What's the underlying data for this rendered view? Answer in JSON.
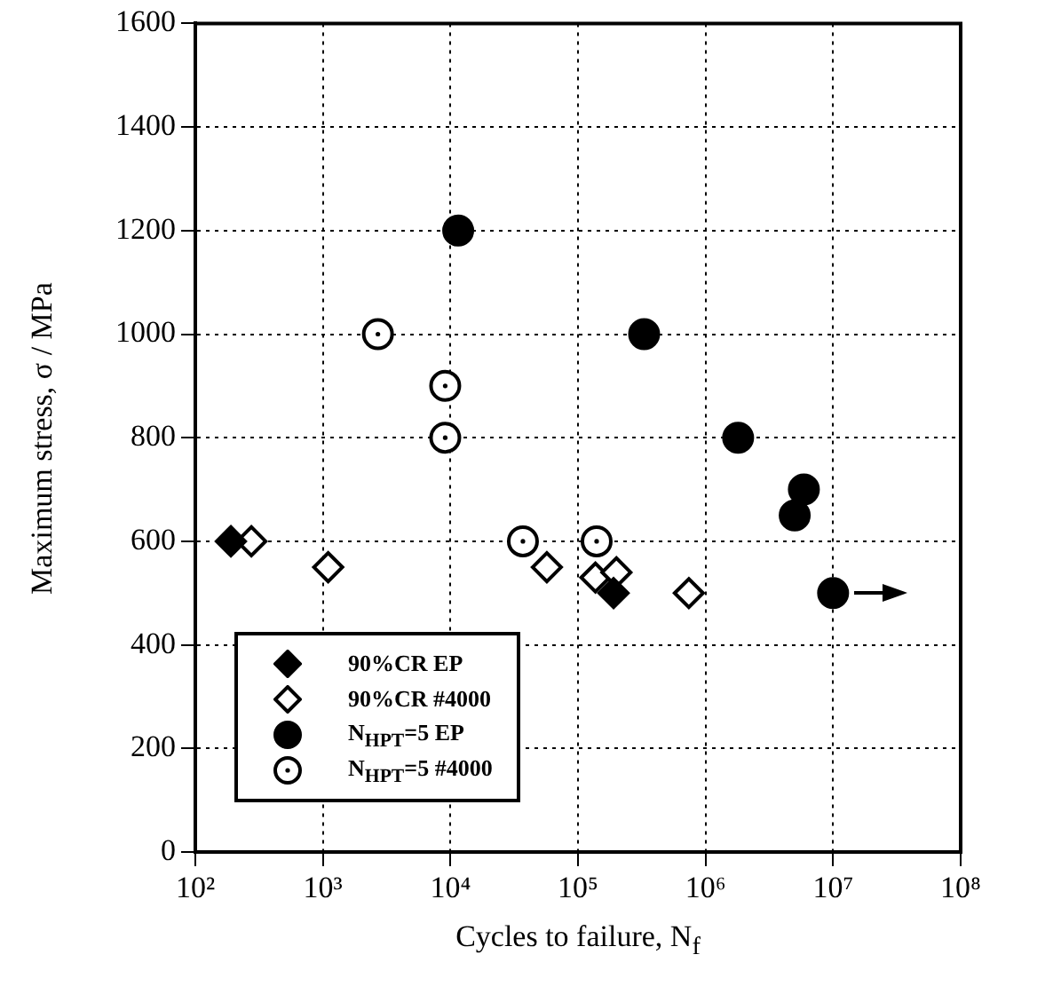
{
  "chart_data": {
    "type": "scatter",
    "xlabel": "Cycles to failure, N$_{f}$",
    "ylabel": "Maximum stress, σ / MPa",
    "log": "x",
    "xlim": [
      100,
      100000000
    ],
    "ylim": [
      0,
      1600
    ],
    "xticks": [
      {
        "value": 100,
        "label": "10²"
      },
      {
        "value": 1000,
        "label": "10³"
      },
      {
        "value": 10000,
        "label": "10⁴"
      },
      {
        "value": 100000,
        "label": "10⁵"
      },
      {
        "value": 1000000,
        "label": "10⁶"
      },
      {
        "value": 10000000,
        "label": "10⁷"
      },
      {
        "value": 100000000,
        "label": "10⁸"
      }
    ],
    "yticks": [
      0,
      200,
      400,
      600,
      800,
      1000,
      1200,
      1400,
      1600
    ],
    "grid": true,
    "legend": "bottom left",
    "series": [
      {
        "name": "90%CR EP",
        "color": "#000000",
        "marker": "diamond",
        "x": [
          190,
          190000
        ],
        "values": [
          600,
          500
        ]
      },
      {
        "name": "90%CR #4000",
        "color": "#000000",
        "marker": "diamond",
        "x": [
          275,
          1100,
          57000,
          137000,
          200000,
          740000
        ],
        "values": [
          600,
          550,
          550,
          530,
          540,
          500
        ]
      },
      {
        "name": "N$_{HPT}$=5 EP",
        "color": "#000000",
        "marker": "circle",
        "x": [
          11500,
          330000,
          1800000,
          5900000,
          5000000,
          10000000
        ],
        "values": [
          1200,
          1000,
          800,
          700,
          650,
          500
        ]
      },
      {
        "name": "N$_{HPT}$=5 #4000",
        "color": "#000000",
        "marker": "circle",
        "x": [
          2700,
          9100,
          9100,
          37000,
          140000
        ],
        "values": [
          1000,
          900,
          800,
          600,
          600
        ]
      }
    ]
  }
}
